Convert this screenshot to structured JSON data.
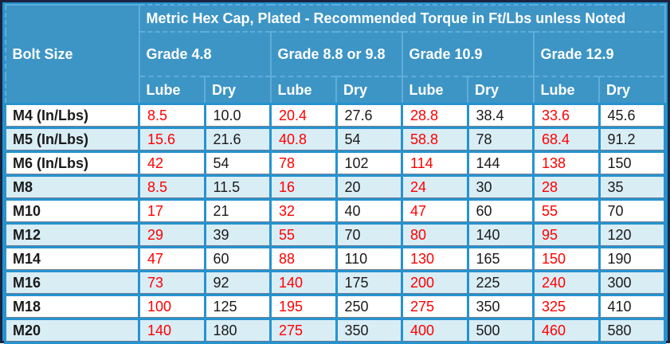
{
  "chart_data": {
    "type": "table",
    "title": "Metric Hex Cap, Plated - Recommended Torque in Ft/Lbs unless Noted",
    "corner_header": "Bolt Size",
    "grade_headers": [
      "Grade 4.8",
      "Grade 8.8 or 9.8",
      "Grade 10.9",
      "Grade 12.9"
    ],
    "condition_headers": [
      "Lube",
      "Dry",
      "Lube",
      "Dry",
      "Lube",
      "Dry",
      "Lube",
      "Dry"
    ],
    "rows": [
      {
        "bolt_size": "M4 (In/Lbs)",
        "values": [
          "8.5",
          "10.0",
          "20.4",
          "27.6",
          "28.8",
          "38.4",
          "33.6",
          "45.6"
        ]
      },
      {
        "bolt_size": "M5 (In/Lbs)",
        "values": [
          "15.6",
          "21.6",
          "40.8",
          "54",
          "58.8",
          "78",
          "68.4",
          "91.2"
        ]
      },
      {
        "bolt_size": "M6 (In/Lbs)",
        "values": [
          "42",
          "54",
          "78",
          "102",
          "114",
          "144",
          "138",
          "150"
        ]
      },
      {
        "bolt_size": "M8",
        "values": [
          "8.5",
          "11.5",
          "16",
          "20",
          "24",
          "30",
          "28",
          "35"
        ]
      },
      {
        "bolt_size": "M10",
        "values": [
          "17",
          "21",
          "32",
          "40",
          "47",
          "60",
          "55",
          "70"
        ]
      },
      {
        "bolt_size": "M12",
        "values": [
          "29",
          "39",
          "55",
          "70",
          "80",
          "140",
          "95",
          "120"
        ]
      },
      {
        "bolt_size": "M14",
        "values": [
          "47",
          "60",
          "88",
          "110",
          "130",
          "165",
          "150",
          "190"
        ]
      },
      {
        "bolt_size": "M16",
        "values": [
          "73",
          "92",
          "140",
          "175",
          "200",
          "225",
          "240",
          "300"
        ]
      },
      {
        "bolt_size": "M18",
        "values": [
          "100",
          "125",
          "195",
          "250",
          "275",
          "350",
          "325",
          "410"
        ]
      },
      {
        "bolt_size": "M20",
        "values": [
          "140",
          "180",
          "275",
          "350",
          "400",
          "500",
          "460",
          "580"
        ]
      }
    ],
    "notes": "Lube columns shown in red, Dry columns in black; rows alternate white and light blue"
  },
  "colors": {
    "header_background": "#3D95C6",
    "header_border": "#5FAED8",
    "grid_line": "#2693CF",
    "row_background": "#FFFFFF",
    "row_alt_background": "#D9EDF5",
    "outer_border": "#1C2340",
    "header_text": "#FFFFFF",
    "lube_text": "#FF0000",
    "dry_text": "#1A1A1A"
  }
}
